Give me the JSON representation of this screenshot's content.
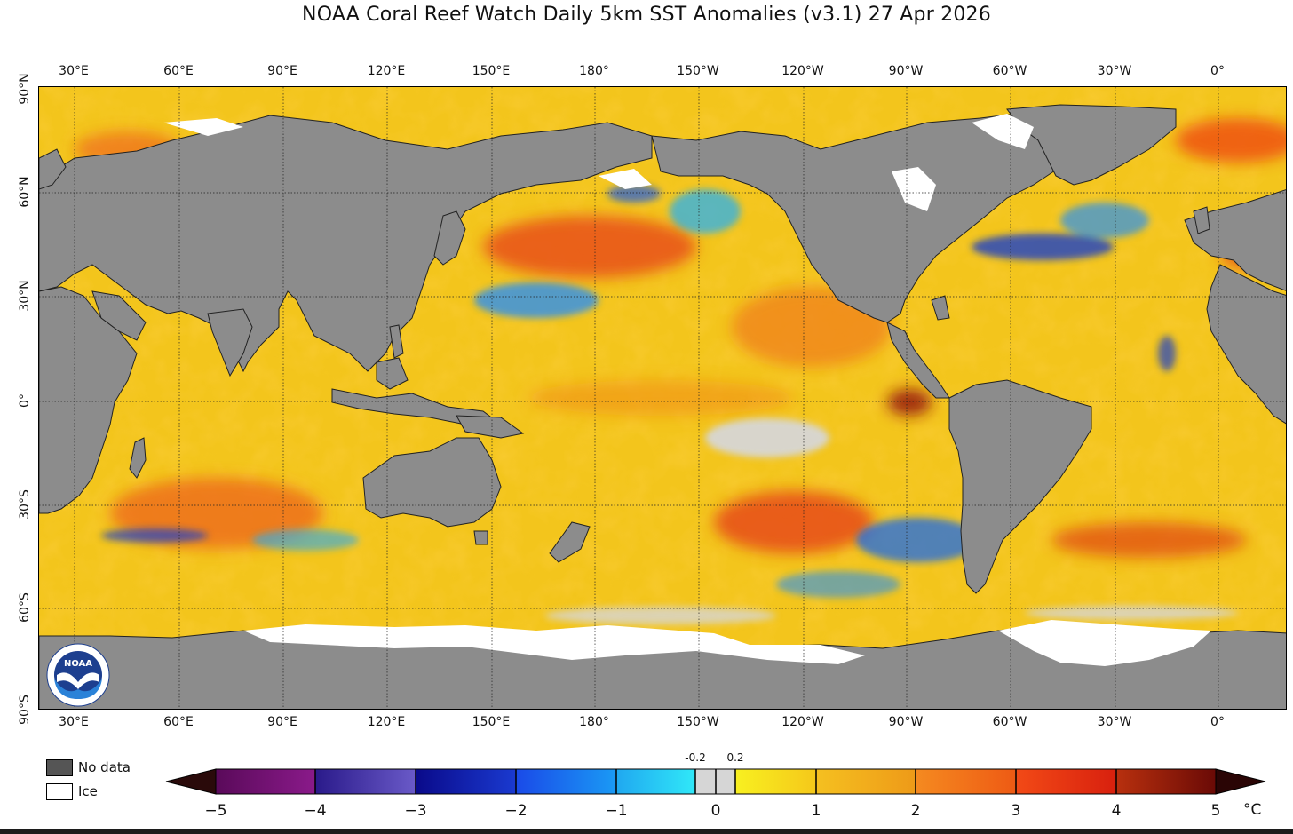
{
  "title": "NOAA Coral Reef Watch Daily 5km SST Anomalies  (v3.1)   27 Apr 2026",
  "top_lon_labels": [
    "30°E",
    "60°E",
    "90°E",
    "120°E",
    "150°E",
    "180°",
    "150°W",
    "120°W",
    "90°W",
    "60°W",
    "30°W",
    "0°"
  ],
  "bottom_lon_labels": [
    "30°E",
    "60°E",
    "90°E",
    "120°E",
    "150°E",
    "180°",
    "150°W",
    "120°W",
    "90°W",
    "60°W",
    "30°W",
    "0°"
  ],
  "lat_labels": [
    "90°N",
    "60°N",
    "30°N",
    "0°",
    "30°S",
    "60°S",
    "90°S"
  ],
  "legend": {
    "nodata_label": "No data",
    "ice_label": "Ice",
    "nodata_color": "#555555",
    "ice_color": "#ffffff"
  },
  "colorbar": {
    "tick_labels": [
      "−5",
      "−4",
      "−3",
      "−2",
      "−1",
      "0",
      "1",
      "2",
      "3",
      "4",
      "5"
    ],
    "small_labels": [
      "-0.2",
      "0.2"
    ],
    "unit": "°C",
    "colors": {
      "lt_-4": "#7a0a7a",
      "-4_-3": "#4a2aa8",
      "-3_-2": "#1111aa",
      "-2_-1": "#1a66ee",
      "-1_-0.2": "#22c8f5",
      "-0.2_0.2": "#d6d6d6",
      "0.2_1": "#f7e41e",
      "1_2": "#f2b520",
      "2_3": "#f27a18",
      "3_4": "#ee3a12",
      "4_5": "#a8200e",
      "gt_5": "#3a0505"
    }
  },
  "map_colors": {
    "land": "#8c8c8c",
    "ocean_base": "#f2c21a",
    "ice": "#ffffff"
  },
  "logo_text": "NOAA"
}
